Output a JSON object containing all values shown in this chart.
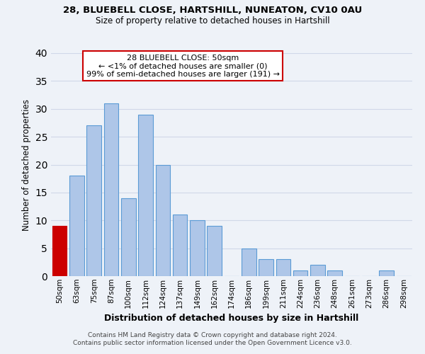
{
  "title1": "28, BLUEBELL CLOSE, HARTSHILL, NUNEATON, CV10 0AU",
  "title2": "Size of property relative to detached houses in Hartshill",
  "xlabel": "Distribution of detached houses by size in Hartshill",
  "ylabel": "Number of detached properties",
  "bar_labels": [
    "50sqm",
    "63sqm",
    "75sqm",
    "87sqm",
    "100sqm",
    "112sqm",
    "124sqm",
    "137sqm",
    "149sqm",
    "162sqm",
    "174sqm",
    "186sqm",
    "199sqm",
    "211sqm",
    "224sqm",
    "236sqm",
    "248sqm",
    "261sqm",
    "273sqm",
    "286sqm",
    "298sqm"
  ],
  "bar_values": [
    9,
    18,
    27,
    31,
    14,
    29,
    20,
    11,
    10,
    9,
    0,
    5,
    3,
    3,
    1,
    2,
    1,
    0,
    0,
    1,
    0
  ],
  "bar_color": "#aec6e8",
  "bar_edge_color": "#5b9bd5",
  "annotation_box_text": "28 BLUEBELL CLOSE: 50sqm\n← <1% of detached houses are smaller (0)\n99% of semi-detached houses are larger (191) →",
  "annotation_box_edge_color": "#cc0000",
  "annotation_box_face_color": "#ffffff",
  "highlight_bar_index": 0,
  "highlight_bar_color": "#cc0000",
  "highlight_bar_edge_color": "#cc0000",
  "ylim": [
    0,
    40
  ],
  "yticks": [
    0,
    5,
    10,
    15,
    20,
    25,
    30,
    35,
    40
  ],
  "grid_color": "#d0d8e8",
  "bg_color": "#eef2f8",
  "footer1": "Contains HM Land Registry data © Crown copyright and database right 2024.",
  "footer2": "Contains public sector information licensed under the Open Government Licence v3.0."
}
